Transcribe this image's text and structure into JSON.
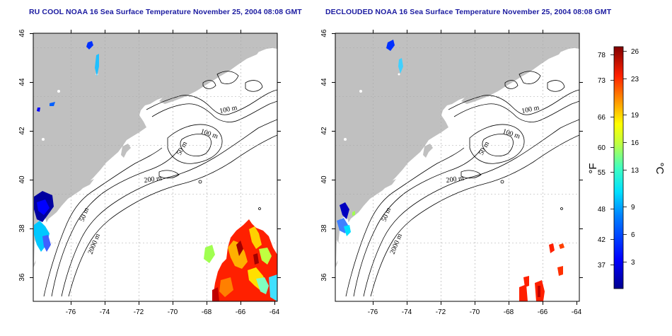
{
  "panels": [
    {
      "title": "RU COOL NOAA 16 Sea Surface Temperature November 25, 2004 08:08 GMT",
      "contour_labels": [
        "100 m",
        "100 m",
        "50 m",
        "200 m",
        "50 m",
        "2000 m"
      ]
    },
    {
      "title": "DECLOUDED NOAA 16 Sea Surface Temperature November 25, 2004 08:08 GMT",
      "contour_labels": [
        "100 m",
        "100 m",
        "50 m",
        "200 m",
        "50 m",
        "2000 m"
      ]
    }
  ],
  "axes": {
    "x_ticks": [
      "-76",
      "-74",
      "-72",
      "-70",
      "-68",
      "-66",
      "-64"
    ],
    "y_ticks": [
      "46",
      "44",
      "42",
      "40",
      "38",
      "36"
    ]
  },
  "colorbar": {
    "f_label": "°F",
    "c_label": "°C",
    "f_ticks": [
      "78",
      "73",
      "66",
      "60",
      "55",
      "48",
      "42",
      "37"
    ],
    "c_ticks": [
      "26",
      "23",
      "19",
      "16",
      "13",
      "9",
      "6",
      "3"
    ]
  },
  "colors": {
    "land": "#c0c0c0",
    "ocean": "#ffffff",
    "title": "#1a1aa0",
    "grid": "#a8a8a8"
  }
}
